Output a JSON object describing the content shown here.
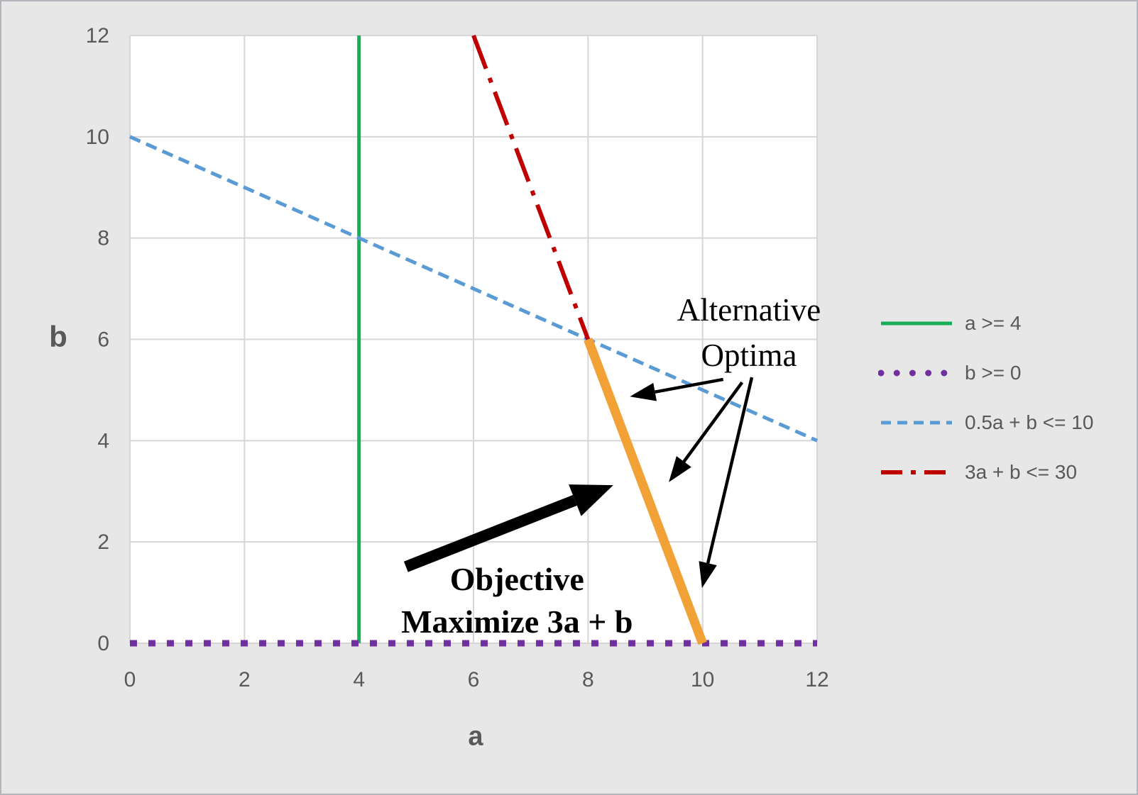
{
  "colors": {
    "page_bg": "#e8e7e7",
    "plot_bg": "#ffffff",
    "grid": "#d6d6d6",
    "tick_text": "#595959",
    "annotation": "#000000",
    "border": "#b2b6ba",
    "green": "#17ad56",
    "purple": "#7030a0",
    "blue": "#5b9bd5",
    "red": "#c00000",
    "orange": "#f2a137"
  },
  "chart_data": {
    "type": "line",
    "title": "",
    "xlabel": "a",
    "ylabel": "b",
    "xlim": [
      0,
      12
    ],
    "ylim": [
      0,
      12
    ],
    "x_ticks": [
      0,
      2,
      4,
      6,
      8,
      10,
      12
    ],
    "y_ticks": [
      0,
      2,
      4,
      6,
      8,
      10,
      12
    ],
    "grid": true,
    "legend_position": "right-middle",
    "series": [
      {
        "id": "a-ge-4",
        "label": "a >= 4",
        "color": "#17ad56",
        "style": "solid",
        "width": 5,
        "in_legend": true,
        "points": [
          [
            4,
            0
          ],
          [
            4,
            12
          ]
        ]
      },
      {
        "id": "b-ge-0",
        "label": "b >= 0",
        "color": "#7030a0",
        "style": "dot",
        "width": 9,
        "in_legend": true,
        "points": [
          [
            0,
            0
          ],
          [
            12,
            0
          ]
        ]
      },
      {
        "id": "half-a-plus-b-le-10",
        "label": "0.5a + b <= 10",
        "color": "#5b9bd5",
        "style": "dash",
        "width": 5,
        "in_legend": true,
        "points": [
          [
            0,
            10
          ],
          [
            12,
            4
          ]
        ]
      },
      {
        "id": "3a-plus-b-le-30",
        "label": "3a + b <= 30",
        "color": "#c00000",
        "style": "dashdot",
        "width": 6,
        "in_legend": true,
        "points": [
          [
            6,
            12
          ],
          [
            8,
            6
          ]
        ]
      },
      {
        "id": "alternative-optima-segment",
        "label": "",
        "color": "#f2a137",
        "style": "solid",
        "width": 13,
        "in_legend": false,
        "points": [
          [
            8,
            6
          ],
          [
            10,
            0
          ]
        ]
      }
    ],
    "annotations": {
      "alt_optima": {
        "line1": "Alternative",
        "line2": "Optima",
        "x": 10.81,
        "y": 6.13
      },
      "objective": {
        "line1": "Objective",
        "line2": "Maximize 3a + b",
        "x": 6.76,
        "y": 0.84
      }
    },
    "arrows": {
      "objective_arrow": {
        "from": [
          4.82,
          1.51
        ],
        "to": [
          8.44,
          3.12
        ]
      },
      "pointer_arrows": [
        {
          "from": [
            10.36,
            5.21
          ],
          "to": [
            8.73,
            4.87
          ]
        },
        {
          "from": [
            10.69,
            5.15
          ],
          "to": [
            9.41,
            3.18
          ]
        },
        {
          "from": [
            10.86,
            5.25
          ],
          "to": [
            9.99,
            1.09
          ]
        }
      ]
    }
  }
}
